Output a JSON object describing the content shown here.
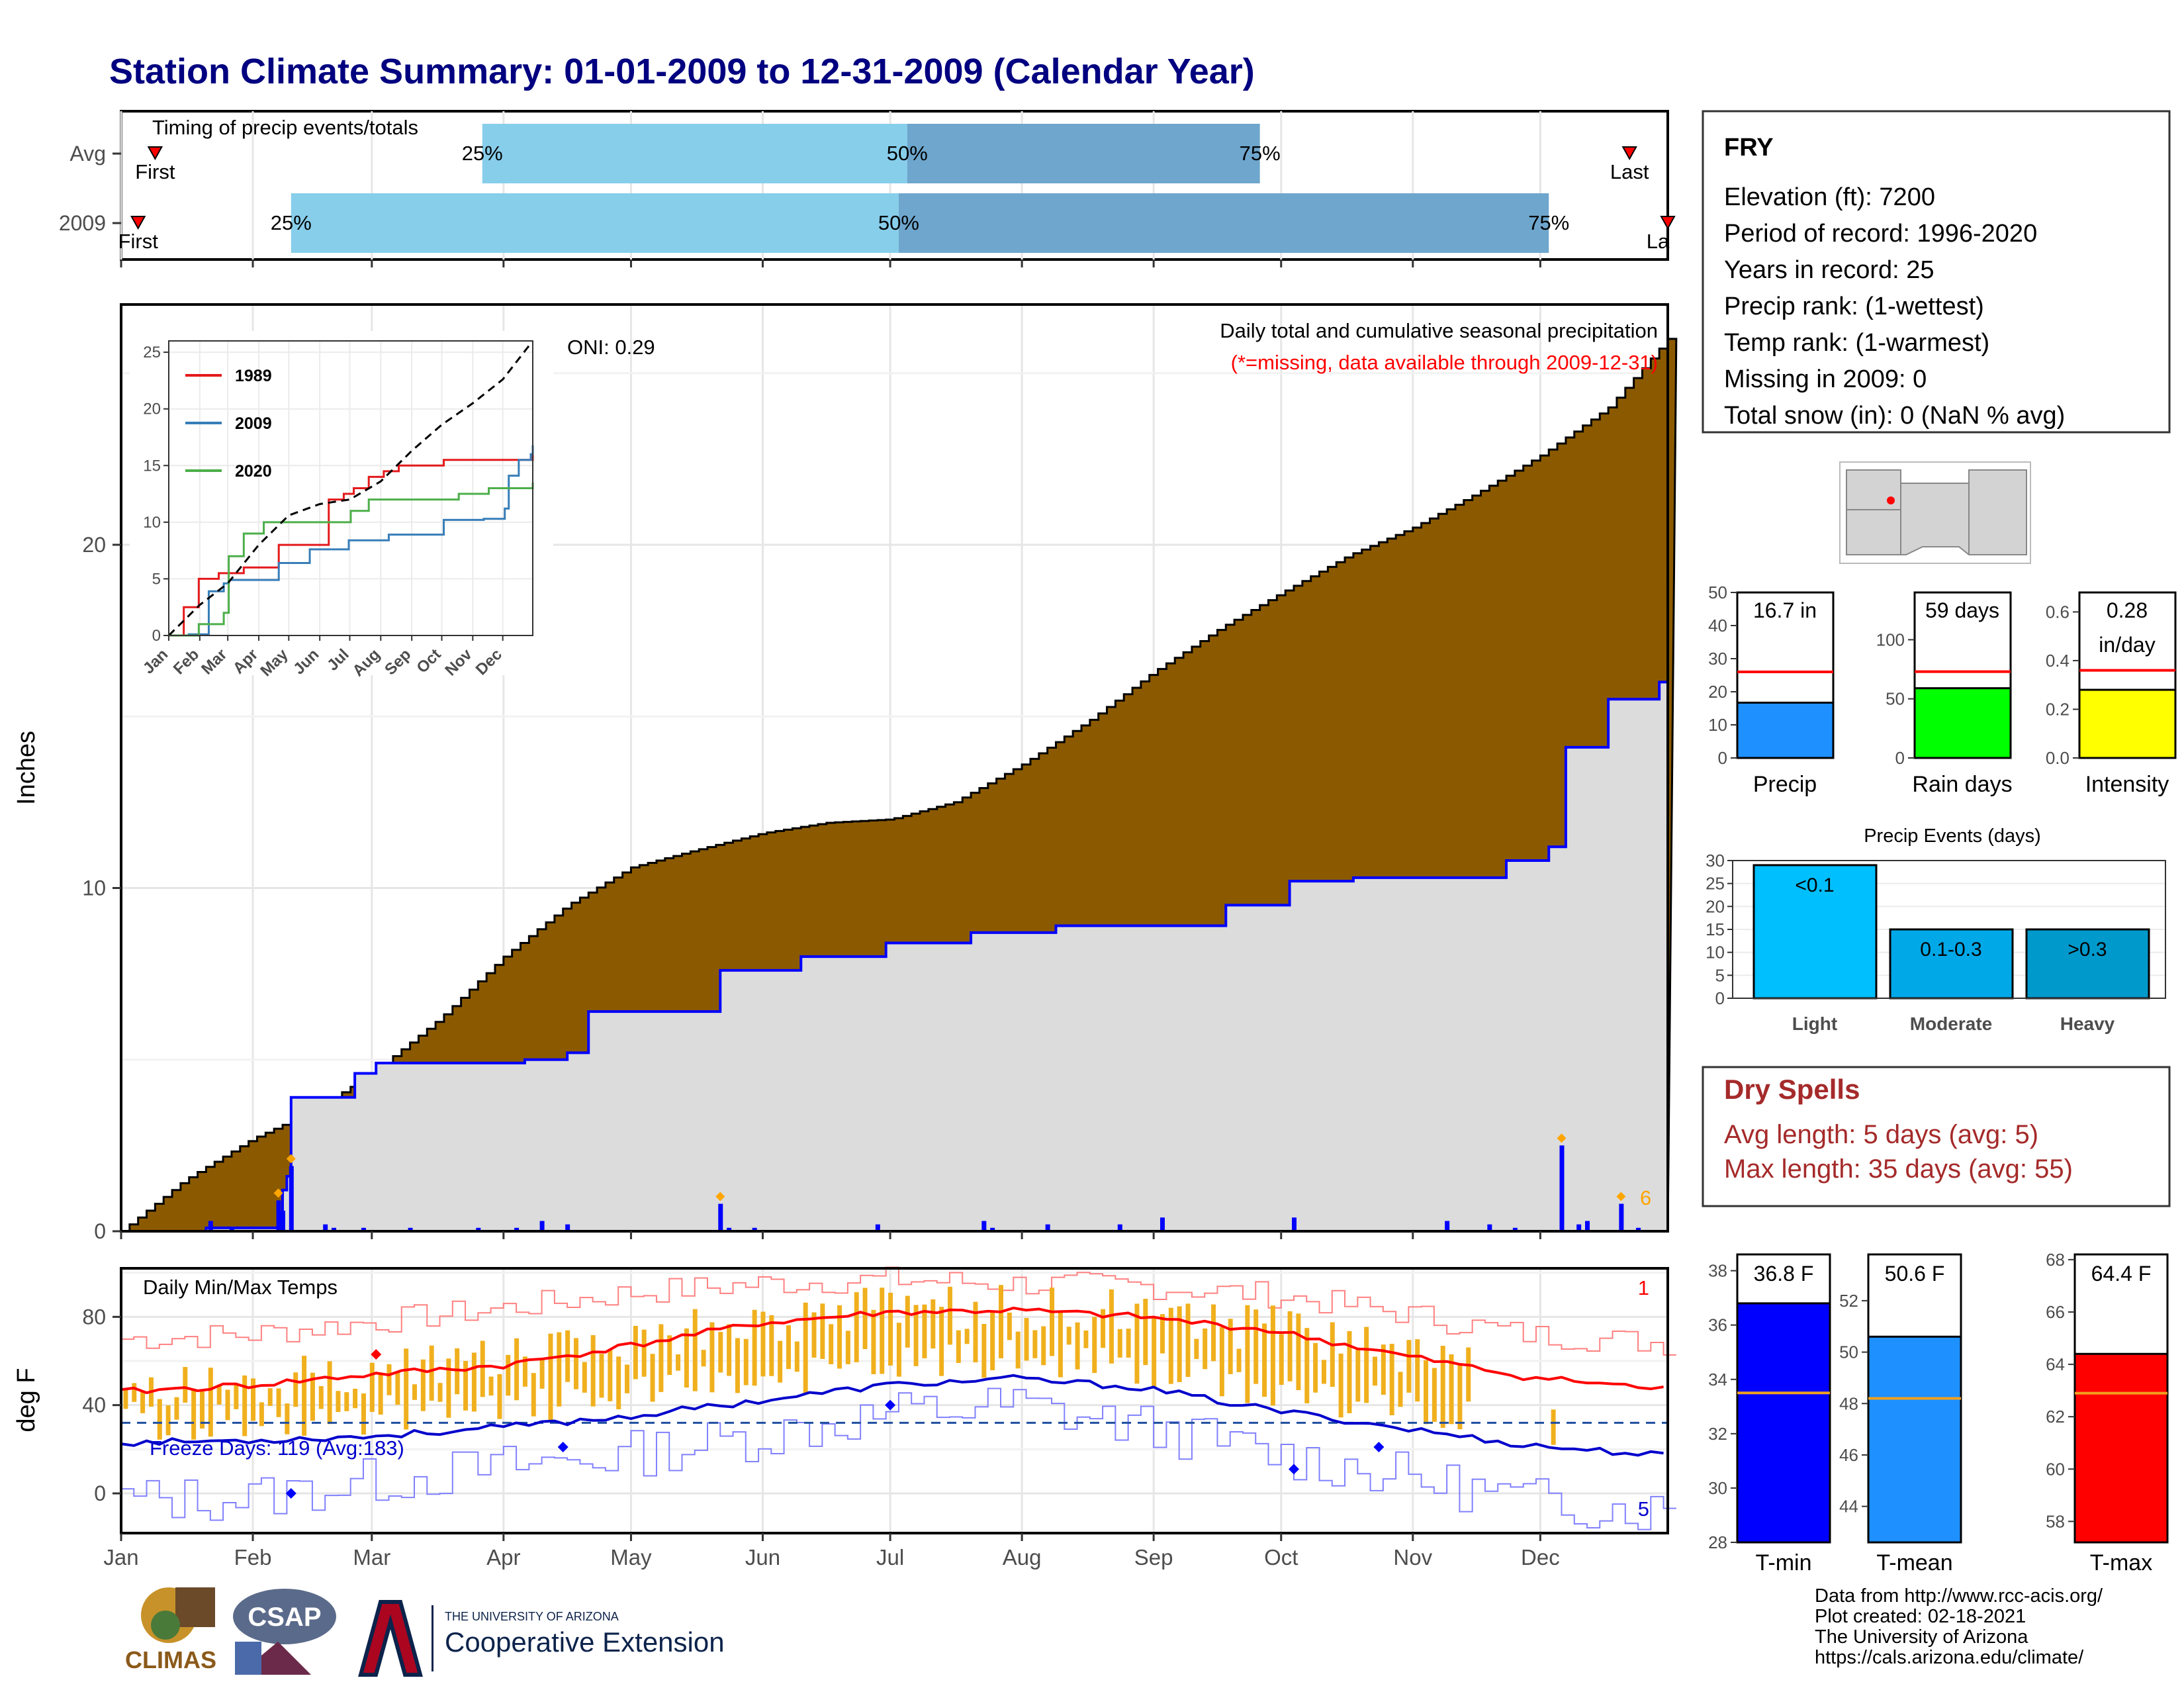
{
  "title": "Station Climate Summary: 01-01-2009 to 12-31-2009 (Calendar Year)",
  "months": [
    "Jan",
    "Feb",
    "Mar",
    "Apr",
    "May",
    "Jun",
    "Jul",
    "Aug",
    "Sep",
    "Oct",
    "Nov",
    "Dec"
  ],
  "timing": {
    "title": "Timing of precip events/totals",
    "rows": [
      {
        "label": "Avg",
        "first": "First",
        "last": "Last",
        "q25": "25%",
        "q50": "50%",
        "q75": "75%",
        "first_day": 8,
        "last_day": 355,
        "q25_day": 85,
        "q50_day": 185,
        "q75_day": 268
      },
      {
        "label": "2009",
        "first": "First",
        "last": "La",
        "q25": "25%",
        "q50": "50%",
        "q75": "75%",
        "first_day": 4,
        "last_day": 364,
        "q25_day": 40,
        "q50_day": 183,
        "q75_day": 336
      }
    ]
  },
  "precip": {
    "title": "Daily total and cumulative seasonal precipitation",
    "subtitle": "(*=missing, data available through 2009-12-31)",
    "oni": "ONI: 0.29",
    "ylabel": "Inches",
    "yticks": [
      0,
      10,
      20
    ],
    "ylim": [
      0,
      27
    ],
    "count_label": "6"
  },
  "chart_data": [
    {
      "type": "area",
      "title": "Daily total and cumulative seasonal precipitation",
      "ylabel": "Inches",
      "x_unit": "day of year",
      "ylim": [
        0,
        27
      ],
      "series": [
        {
          "name": "cumulative average (brown area)",
          "x": [
            0,
            15,
            31,
            45,
            59,
            75,
            90,
            105,
            120,
            135,
            151,
            166,
            181,
            196,
            212,
            228,
            243,
            259,
            273,
            289,
            304,
            319,
            334,
            350,
            364
          ],
          "values": [
            0,
            1.5,
            2.7,
            3.5,
            4.6,
            6.2,
            8.0,
            9.5,
            10.6,
            11.1,
            11.6,
            11.9,
            12.0,
            12.5,
            13.6,
            14.9,
            16.3,
            17.6,
            18.6,
            19.7,
            20.5,
            21.5,
            22.6,
            24.0,
            26.0
          ]
        },
        {
          "name": "cumulative 2009 (blue line)",
          "x": [
            0,
            20,
            38,
            39,
            40,
            55,
            60,
            95,
            105,
            110,
            125,
            140,
            141,
            160,
            180,
            200,
            220,
            260,
            275,
            290,
            315,
            326,
            336,
            340,
            350,
            362,
            364
          ],
          "values": [
            0,
            0.1,
            1.2,
            1.6,
            3.9,
            4.6,
            4.9,
            5.0,
            5.2,
            6.4,
            6.4,
            6.4,
            7.6,
            8.0,
            8.4,
            8.7,
            8.9,
            9.5,
            10.2,
            10.3,
            10.3,
            10.8,
            11.2,
            14.1,
            15.5,
            16.0,
            16.8
          ]
        },
        {
          "name": "daily precipitation (blue bars)",
          "x": [
            21,
            26,
            37,
            38,
            40,
            48,
            50,
            57,
            68,
            84,
            93,
            99,
            105,
            141,
            143,
            149,
            178,
            203,
            205,
            218,
            235,
            245,
            276,
            312,
            322,
            328,
            339,
            343,
            345,
            353,
            357
          ],
          "values": [
            0.3,
            0.1,
            0.9,
            0.6,
            1.9,
            0.2,
            0.1,
            0.1,
            0.1,
            0.1,
            0.1,
            0.3,
            0.2,
            0.8,
            0.1,
            0.1,
            0.2,
            0.3,
            0.1,
            0.2,
            0.2,
            0.4,
            0.4,
            0.3,
            0.2,
            0.1,
            2.5,
            0.2,
            0.3,
            0.8,
            0.1
          ]
        }
      ]
    },
    {
      "type": "line",
      "inset": true,
      "x_ticks": [
        "Jan",
        "Feb",
        "Mar",
        "Apr",
        "May",
        "Jun",
        "Jul",
        "Aug",
        "Sep",
        "Oct",
        "Nov",
        "Dec"
      ],
      "yticks": [
        0,
        5,
        10,
        15,
        20,
        25
      ],
      "ylim": [
        0,
        26
      ],
      "series": [
        {
          "name": "1989",
          "color": "#e41a1c",
          "x": [
            0,
            15,
            30,
            50,
            75,
            110,
            160,
            175,
            185,
            200,
            215,
            230,
            275,
            300,
            330,
            364
          ],
          "values": [
            0,
            2.5,
            5,
            5.5,
            6,
            8,
            12,
            12.5,
            13,
            14,
            14.5,
            15,
            15.5,
            15.5,
            15.5,
            16
          ]
        },
        {
          "name": "2009",
          "color": "#377eb8",
          "x": [
            0,
            20,
            40,
            55,
            60,
            110,
            125,
            141,
            180,
            220,
            275,
            315,
            336,
            340,
            350,
            362,
            364
          ],
          "values": [
            0,
            0.1,
            3.9,
            4.6,
            4.9,
            6.4,
            6.4,
            7.6,
            8.4,
            8.9,
            10.2,
            10.3,
            11.2,
            14.1,
            15.5,
            16.0,
            16.8
          ]
        },
        {
          "name": "2020",
          "color": "#4daf4a",
          "x": [
            0,
            30,
            55,
            60,
            75,
            95,
            150,
            182,
            200,
            240,
            290,
            320,
            364
          ],
          "values": [
            0,
            1,
            2,
            7,
            9,
            10,
            10,
            11,
            12,
            12,
            12.5,
            13,
            13.5
          ]
        },
        {
          "name": "average",
          "dashed": true,
          "x": [
            0,
            31,
            59,
            90,
            120,
            151,
            181,
            212,
            243,
            273,
            304,
            334,
            364
          ],
          "values": [
            0,
            2.7,
            4.6,
            8.0,
            10.6,
            11.6,
            12.0,
            13.6,
            16.3,
            18.6,
            20.5,
            22.6,
            26.0
          ]
        }
      ]
    },
    {
      "type": "line",
      "title": "Daily Min/Max Temps",
      "ylabel": "deg F",
      "yticks": [
        0,
        40,
        80
      ],
      "ylim": [
        -18,
        102
      ],
      "freeze_line": 32,
      "series": [
        {
          "name": "avg max",
          "color": "#ff0000",
          "x": [
            0,
            30,
            60,
            90,
            120,
            150,
            180,
            210,
            240,
            270,
            300,
            330,
            364
          ],
          "values": [
            46,
            49,
            54,
            58,
            67,
            77,
            82,
            83,
            80,
            74,
            63,
            53,
            47
          ]
        },
        {
          "name": "avg min",
          "color": "#0000cc",
          "x": [
            0,
            30,
            60,
            90,
            120,
            150,
            180,
            210,
            240,
            270,
            300,
            330,
            364
          ],
          "values": [
            23,
            24,
            26,
            30,
            35,
            42,
            49,
            52,
            48,
            38,
            30,
            22,
            17
          ]
        },
        {
          "name": "record max",
          "color": "#ff8080",
          "x": [
            0,
            30,
            60,
            90,
            120,
            150,
            180,
            210,
            240,
            270,
            300,
            330,
            364
          ],
          "values": [
            70,
            72,
            78,
            84,
            91,
            95,
            97,
            95,
            94,
            90,
            82,
            72,
            68
          ]
        },
        {
          "name": "record min",
          "color": "#8080ff",
          "x": [
            0,
            30,
            60,
            90,
            120,
            150,
            180,
            210,
            240,
            270,
            300,
            330,
            364
          ],
          "values": [
            -3,
            -2,
            6,
            12,
            18,
            26,
            36,
            40,
            30,
            18,
            8,
            -3,
            -8
          ]
        }
      ]
    }
  ],
  "temps": {
    "title": "Daily Min/Max Temps",
    "ylabel": "deg F",
    "freeze": "Freeze Days: 119 (Avg:183)",
    "count_top": "1",
    "count_bottom": "5"
  },
  "station": {
    "name": "FRY",
    "lines": [
      "Elevation (ft): 7200",
      "Period of record: 1996-2020",
      "Years in record: 25",
      "Precip rank:  (1-wettest)",
      "Temp rank:  (1-warmest)",
      "Missing in 2009: 0",
      "Total snow (in): 0 (NaN % avg)"
    ]
  },
  "mini_bars": [
    {
      "label": "Precip",
      "value_text": "16.7 in",
      "value": 16.7,
      "avg": 26,
      "ymax": 50,
      "yticks": [
        "0",
        "10",
        "20",
        "30",
        "40",
        "50"
      ],
      "color": "#1e90ff"
    },
    {
      "label": "Rain days",
      "value_text": "59 days",
      "value": 59,
      "avg": 73,
      "ymax": 140,
      "yticks": [
        "0",
        "50",
        "100"
      ],
      "color": "#00ff00"
    },
    {
      "label": "Intensity",
      "value_text": "0.28",
      "value_text2": "in/day",
      "value": 0.28,
      "avg": 0.36,
      "ymax": 0.68,
      "yticks": [
        "0.0",
        "0.2",
        "0.4",
        "0.6"
      ],
      "color": "#ffff00"
    }
  ],
  "events": {
    "title": "Precip Events (days)",
    "yticks": [
      "0",
      "5",
      "10",
      "15",
      "20",
      "25",
      "30"
    ],
    "bars": [
      {
        "label": "Light",
        "value_text": "<0.1",
        "value": 29,
        "color": "#00bfff"
      },
      {
        "label": "Moderate",
        "value_text": "0.1-0.3",
        "value": 15,
        "color": "#00a8e8"
      },
      {
        "label": "Heavy",
        "value_text": ">0.3",
        "value": 15,
        "color": "#0099cc"
      }
    ]
  },
  "dry": {
    "title": "Dry Spells",
    "avg": "Avg length: 5 days (avg: 5)",
    "max": "Max length: 35 days (avg: 55)"
  },
  "temp_bars": [
    {
      "label": "T-min",
      "value_text": "36.8 F",
      "value": 36.8,
      "avg": 33.5,
      "ymin": 28,
      "ymax": 38.6,
      "yticks": [
        28,
        30,
        32,
        34,
        36,
        38
      ],
      "color": "#0000ff"
    },
    {
      "label": "T-mean",
      "value_text": "50.6 F",
      "value": 50.6,
      "avg": 48.2,
      "ymin": 42.6,
      "ymax": 53.8,
      "yticks": [
        44,
        46,
        48,
        50,
        52
      ],
      "color": "#1e90ff"
    },
    {
      "label": "T-max",
      "value_text": "64.4 F",
      "value": 64.4,
      "avg": 62.9,
      "ymin": 57.2,
      "ymax": 68.2,
      "yticks": [
        58,
        60,
        62,
        64,
        66,
        68
      ],
      "color": "#ff0000"
    }
  ],
  "credits": [
    "Data from http://www.rcc-acis.org/",
    "Plot created: 02-18-2021",
    "The University of Arizona",
    "https://cals.arizona.edu/climate/"
  ],
  "logos": {
    "climas": "CLIMAS",
    "csap": "CSAP",
    "ua_small": "THE UNIVERSITY OF ARIZONA",
    "ua_big": "Cooperative Extension"
  }
}
